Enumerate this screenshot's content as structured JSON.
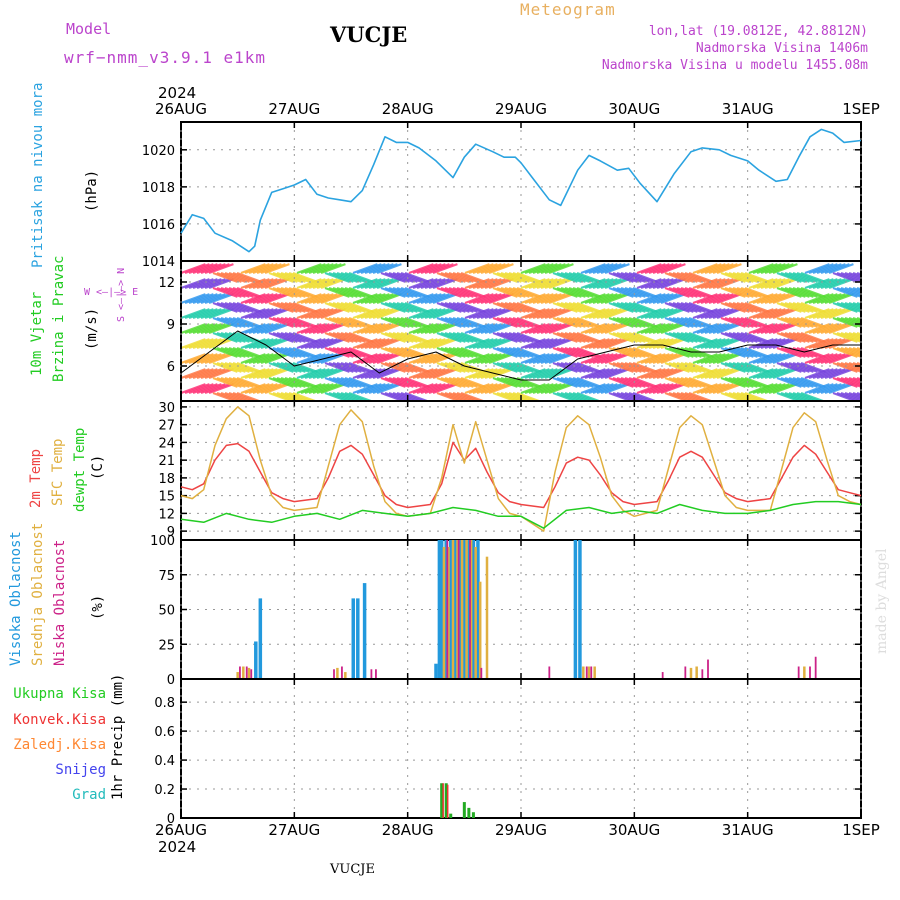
{
  "header": {
    "model_label": "Model",
    "model_name": "wrf−nmm_v3.9.1  e1km",
    "station": "VUCJE",
    "meteogram": "Meteogram",
    "coords": "lon,lat (19.0812E, 42.8812N)",
    "elevation": "Nadmorska Visina 1406m",
    "model_elevation": "Nadmorska Visina u modelu 1455.08m",
    "year_top": "2024",
    "year_bottom": "2024",
    "footer_station": "VUCJE",
    "credit": "made by Angel"
  },
  "colors": {
    "pressure": "#2ba3e0",
    "wind_speed": "#000000",
    "temp2m": "#ee4444",
    "sfc_temp": "#e0b040",
    "dewpt": "#22cc22",
    "high_cloud": "#2299dd",
    "mid_cloud": "#e0b040",
    "low_cloud": "#cc2288",
    "total_precip": "#22aa22",
    "conv_precip": "#ee3333",
    "frozen_precip": "#ff8833",
    "snow": "#4444ee",
    "hail": "#22bbbb",
    "label_purple": "#bb44cc",
    "label_orange": "#e8b060"
  },
  "labels": {
    "pressure_title": "Pritisak na nivou mora",
    "pressure_unit": "(hPa)",
    "wind_title_1": "10m Vjetar",
    "wind_title_2": "Brzina i Pravac",
    "wind_unit": "(m/s)",
    "wind_compass": "W <–|–> E",
    "wind_compass_v": "S <–|–> N",
    "temp_2m": "2m Temp",
    "temp_sfc": "SFC Temp",
    "temp_dew": "dewpt Temp",
    "temp_unit": "(C)",
    "cloud_high": "Visoka Oblacnost",
    "cloud_mid": "Srednja Oblacnost",
    "cloud_low": "Niska Oblacnost",
    "cloud_unit": "(%)",
    "precip_total": "Ukupna Kisa",
    "precip_conv": "Konvek.Kisa",
    "precip_frozen": "Zaledj.Kisa",
    "precip_snow": "Snijeg",
    "precip_hail": "Grad",
    "precip_unit": "1hr Precip (mm)"
  },
  "chart_data": [
    {
      "type": "line",
      "title": "Pritisak na nivou mora",
      "ylabel": "(hPa)",
      "x_start": "26AUG",
      "x_end": "1SEP",
      "x_ticks": [
        "26AUG",
        "27AUG",
        "28AUG",
        "29AUG",
        "30AUG",
        "31AUG",
        "1SEP"
      ],
      "ylim": [
        1014,
        1021.5
      ],
      "y_ticks": [
        1014,
        1016,
        1018,
        1020
      ],
      "series": [
        {
          "name": "Pritisak na nivou mora",
          "x_days": [
            0,
            0.1,
            0.2,
            0.3,
            0.45,
            0.6,
            0.65,
            0.7,
            0.8,
            0.9,
            1.0,
            1.1,
            1.2,
            1.3,
            1.4,
            1.5,
            1.6,
            1.7,
            1.8,
            1.9,
            2.0,
            2.1,
            2.25,
            2.4,
            2.5,
            2.6,
            2.75,
            2.85,
            2.95,
            3.0,
            3.1,
            3.25,
            3.35,
            3.5,
            3.6,
            3.7,
            3.85,
            3.95,
            4.05,
            4.2,
            4.35,
            4.5,
            4.6,
            4.75,
            4.85,
            5.0,
            5.1,
            5.25,
            5.35,
            5.45,
            5.55,
            5.65,
            5.75,
            5.85,
            6.0
          ],
          "values": [
            1015.5,
            1016.5,
            1016.3,
            1015.5,
            1015.1,
            1014.5,
            1014.8,
            1016.2,
            1017.7,
            1017.9,
            1018.1,
            1018.4,
            1017.6,
            1017.4,
            1017.3,
            1017.2,
            1017.8,
            1019.2,
            1020.7,
            1020.4,
            1020.4,
            1020.1,
            1019.4,
            1018.5,
            1019.6,
            1020.3,
            1019.9,
            1019.6,
            1019.6,
            1019.3,
            1018.5,
            1017.3,
            1017.0,
            1018.9,
            1019.7,
            1019.4,
            1018.9,
            1019.0,
            1018.2,
            1017.2,
            1018.7,
            1019.9,
            1020.1,
            1020.0,
            1019.7,
            1019.4,
            1018.9,
            1018.3,
            1018.4,
            1019.6,
            1020.7,
            1021.1,
            1020.9,
            1020.4,
            1020.5
          ]
        }
      ]
    },
    {
      "type": "line",
      "title": "10m Vjetar Brzina i Pravac",
      "ylabel": "(m/s)",
      "ylim": [
        3.5,
        13.5
      ],
      "y_ticks": [
        6,
        9,
        12
      ],
      "series": [
        {
          "name": "10m Vjetar",
          "x_days": [
            0,
            0.25,
            0.5,
            0.75,
            1.0,
            1.25,
            1.5,
            1.75,
            2.0,
            2.25,
            2.5,
            2.75,
            3.0,
            3.25,
            3.5,
            3.75,
            4.0,
            4.25,
            4.5,
            4.75,
            5.0,
            5.25,
            5.5,
            5.75,
            6.0
          ],
          "values": [
            5.5,
            7.0,
            8.5,
            7.5,
            6.0,
            6.5,
            7.0,
            5.5,
            6.5,
            7.0,
            6.0,
            5.5,
            5.0,
            5.0,
            6.5,
            7.0,
            7.5,
            7.5,
            7.0,
            7.0,
            7.5,
            7.5,
            7.0,
            7.5,
            7.5
          ]
        }
      ]
    },
    {
      "type": "line",
      "ylabel": "(C)",
      "ylim": [
        7.5,
        31
      ],
      "y_ticks": [
        9,
        12,
        15,
        18,
        21,
        24,
        27,
        30
      ],
      "series": [
        {
          "name": "2m Temp",
          "x_days": [
            0,
            0.1,
            0.2,
            0.3,
            0.4,
            0.5,
            0.6,
            0.7,
            0.8,
            0.9,
            1.0,
            1.2,
            1.3,
            1.4,
            1.5,
            1.6,
            1.7,
            1.8,
            1.9,
            2.0,
            2.2,
            2.3,
            2.4,
            2.5,
            2.6,
            2.7,
            2.8,
            2.9,
            3.0,
            3.2,
            3.3,
            3.4,
            3.5,
            3.6,
            3.7,
            3.8,
            3.9,
            4.0,
            4.2,
            4.3,
            4.4,
            4.5,
            4.6,
            4.7,
            4.8,
            4.9,
            5.0,
            5.2,
            5.3,
            5.4,
            5.5,
            5.6,
            5.7,
            5.8,
            5.9,
            6.0
          ],
          "values": [
            16.5,
            16.0,
            17.0,
            21.0,
            23.5,
            23.8,
            22.5,
            19.0,
            15.5,
            14.5,
            14.0,
            14.5,
            18.0,
            22.5,
            23.5,
            22.0,
            18.5,
            15.0,
            13.5,
            13.0,
            13.5,
            17.0,
            24.0,
            21.0,
            23.0,
            19.0,
            15.5,
            14.0,
            13.5,
            13.0,
            16.5,
            20.5,
            21.5,
            21.0,
            18.5,
            15.5,
            14.0,
            13.5,
            14.0,
            17.5,
            21.5,
            22.5,
            21.5,
            18.5,
            15.5,
            14.5,
            14.0,
            14.5,
            18.0,
            21.5,
            23.5,
            22.0,
            19.0,
            16.0,
            15.5,
            15.0
          ]
        },
        {
          "name": "SFC Temp",
          "x_days": [
            0,
            0.1,
            0.2,
            0.3,
            0.4,
            0.5,
            0.6,
            0.7,
            0.8,
            0.9,
            1.0,
            1.2,
            1.3,
            1.4,
            1.5,
            1.6,
            1.7,
            1.8,
            1.9,
            2.0,
            2.2,
            2.3,
            2.4,
            2.5,
            2.6,
            2.7,
            2.8,
            2.9,
            3.0,
            3.2,
            3.3,
            3.4,
            3.5,
            3.6,
            3.7,
            3.8,
            3.9,
            4.0,
            4.2,
            4.3,
            4.4,
            4.5,
            4.6,
            4.7,
            4.8,
            4.9,
            5.0,
            5.2,
            5.3,
            5.4,
            5.5,
            5.6,
            5.7,
            5.8,
            5.9,
            6.0
          ],
          "values": [
            15.0,
            14.5,
            16.0,
            23.5,
            28.0,
            30.0,
            28.5,
            21.0,
            15.0,
            13.0,
            12.5,
            13.0,
            20.0,
            27.0,
            29.5,
            27.5,
            20.0,
            14.0,
            12.0,
            11.5,
            12.0,
            18.0,
            27.0,
            20.5,
            27.5,
            21.0,
            14.5,
            12.0,
            11.5,
            9.0,
            19.0,
            26.5,
            28.5,
            27.0,
            21.5,
            15.0,
            12.5,
            11.5,
            12.5,
            19.5,
            26.5,
            28.5,
            27.0,
            21.0,
            15.0,
            13.0,
            12.5,
            12.5,
            19.5,
            26.5,
            29.0,
            27.5,
            21.0,
            15.0,
            14.0,
            13.5
          ]
        },
        {
          "name": "dewpt Temp",
          "x_days": [
            0,
            0.2,
            0.4,
            0.6,
            0.8,
            1.0,
            1.2,
            1.4,
            1.6,
            1.8,
            2.0,
            2.2,
            2.4,
            2.6,
            2.8,
            3.0,
            3.2,
            3.4,
            3.6,
            3.8,
            4.0,
            4.2,
            4.4,
            4.6,
            4.8,
            5.0,
            5.2,
            5.4,
            5.6,
            5.8,
            6.0
          ],
          "values": [
            11.0,
            10.5,
            12.0,
            11.0,
            10.5,
            11.5,
            12.0,
            11.0,
            12.5,
            12.0,
            11.5,
            12.0,
            13.0,
            12.5,
            11.5,
            11.5,
            9.5,
            12.5,
            13.0,
            12.0,
            12.5,
            12.0,
            13.5,
            12.5,
            12.0,
            12.0,
            12.5,
            13.5,
            14.0,
            14.0,
            13.5
          ]
        }
      ]
    },
    {
      "type": "bar",
      "ylabel": "(%)",
      "ylim": [
        0,
        100
      ],
      "y_ticks": [
        0,
        25,
        50,
        75,
        100
      ],
      "series": [
        {
          "name": "Visoka Oblacnost",
          "x_days": [
            0.66,
            0.7,
            1.52,
            1.56,
            1.62,
            2.25,
            2.28,
            2.3,
            2.34,
            2.38,
            2.42,
            2.46,
            2.5,
            2.54,
            2.58,
            2.62,
            3.48,
            3.52
          ],
          "values": [
            27,
            58,
            58,
            58,
            69,
            11,
            100,
            100,
            100,
            100,
            100,
            100,
            100,
            100,
            100,
            100,
            100,
            100
          ]
        },
        {
          "name": "Srednja Oblacnost",
          "x_days": [
            0.5,
            0.55,
            0.6,
            1.38,
            1.45,
            2.32,
            2.36,
            2.4,
            2.44,
            2.48,
            2.52,
            2.56,
            2.6,
            2.64,
            2.7,
            3.55,
            3.6,
            3.65,
            4.5,
            4.55,
            5.5
          ],
          "values": [
            5,
            9,
            8,
            8,
            5,
            95,
            95,
            100,
            100,
            100,
            100,
            100,
            95,
            70,
            88,
            9,
            9,
            9,
            8,
            9,
            9
          ]
        },
        {
          "name": "Niska Oblacnost",
          "x_days": [
            0.52,
            0.58,
            0.62,
            1.35,
            1.42,
            1.68,
            1.72,
            2.35,
            2.45,
            2.55,
            2.65,
            3.25,
            3.58,
            3.62,
            4.25,
            4.45,
            4.6,
            4.65,
            5.45,
            5.55,
            5.6
          ],
          "values": [
            9,
            9,
            7,
            7,
            9,
            7,
            7,
            100,
            100,
            100,
            8,
            9,
            9,
            9,
            5,
            9,
            7,
            14,
            9,
            9,
            16
          ]
        }
      ]
    },
    {
      "type": "bar",
      "ylabel": "1hr Precip (mm)",
      "ylim": [
        0,
        0.96
      ],
      "y_ticks": [
        0,
        0.2,
        0.4,
        0.6,
        0.8
      ],
      "series": [
        {
          "name": "Ukupna Kisa",
          "x_days": [
            2.3,
            2.34,
            2.38,
            2.5,
            2.54,
            2.58
          ],
          "values": [
            0.24,
            0.24,
            0.03,
            0.11,
            0.07,
            0.04
          ]
        },
        {
          "name": "Konvek.Kisa",
          "x_days": [
            2.3,
            2.34
          ],
          "values": [
            0.24,
            0.23
          ]
        }
      ]
    }
  ]
}
